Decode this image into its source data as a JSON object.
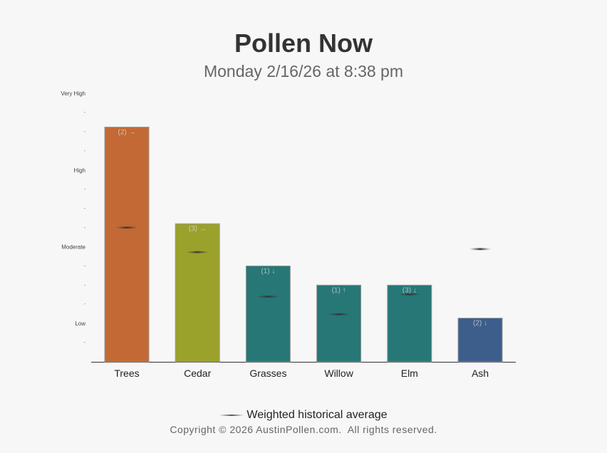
{
  "title": "Pollen Now",
  "subtitle": "Monday 2/16/26 at 8:38 pm",
  "chart_data": {
    "type": "bar",
    "categories": [
      "Trees",
      "Cedar",
      "Grasses",
      "Willow",
      "Elm",
      "Ash"
    ],
    "values": [
      3.56,
      2.3,
      1.75,
      1.5,
      1.5,
      1.07
    ],
    "historical_average": [
      2.25,
      1.93,
      1.35,
      1.12,
      1.38,
      1.97
    ],
    "bar_labels": [
      "(2) →",
      "(3) →",
      "(1) ↓",
      "(1) ↑",
      "(3) ↓",
      "(2) ↓"
    ],
    "colors": [
      "#c26935",
      "#9aa22b",
      "#277777",
      "#277777",
      "#277777",
      "#3d5d8b"
    ],
    "y_ticks": [
      {
        "value": 1,
        "label": "Low"
      },
      {
        "value": 2,
        "label": "Moderate"
      },
      {
        "value": 3,
        "label": "High"
      },
      {
        "value": 4,
        "label": "Very High"
      }
    ],
    "y_minor_tick_label": "-",
    "ylim": [
      0.5,
      4
    ],
    "grid": false,
    "legend_position": "bottom"
  },
  "legend": {
    "label": "Weighted historical average"
  },
  "copyright": "Copyright © 2026 AustinPollen.com.  All rights reserved."
}
